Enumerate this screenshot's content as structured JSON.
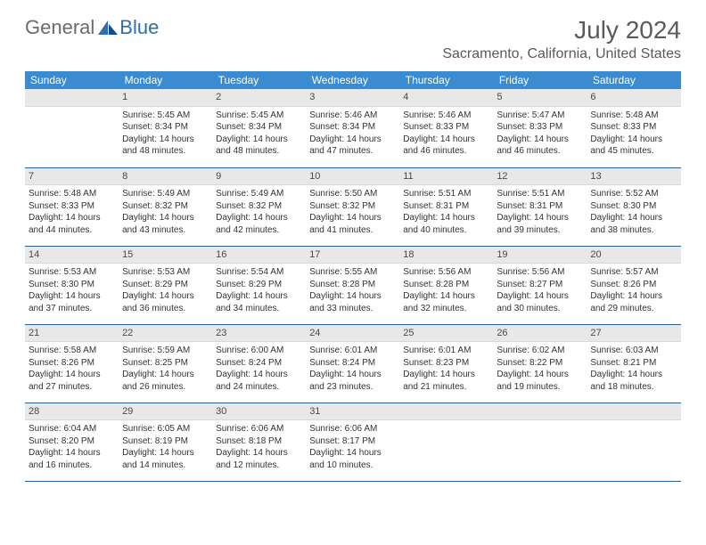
{
  "logo": {
    "part1": "General",
    "part2": "Blue"
  },
  "title": "July 2024",
  "location": "Sacramento, California, United States",
  "colors": {
    "header_bg": "#3a8bd0",
    "header_text": "#ffffff",
    "daynum_bg": "#e8e8e8",
    "row_border": "#2a5f8f",
    "logo_gray": "#6b6b6b",
    "logo_blue": "#2f6fb0",
    "body_text": "#333333"
  },
  "typography": {
    "title_fontsize": 28,
    "location_fontsize": 16,
    "dayheader_fontsize": 12,
    "daynum_fontsize": 11,
    "cell_fontsize": 10
  },
  "weekdays": [
    "Sunday",
    "Monday",
    "Tuesday",
    "Wednesday",
    "Thursday",
    "Friday",
    "Saturday"
  ],
  "weeks": [
    [
      {
        "n": "",
        "lines": []
      },
      {
        "n": "1",
        "lines": [
          "Sunrise: 5:45 AM",
          "Sunset: 8:34 PM",
          "Daylight: 14 hours",
          "and 48 minutes."
        ]
      },
      {
        "n": "2",
        "lines": [
          "Sunrise: 5:45 AM",
          "Sunset: 8:34 PM",
          "Daylight: 14 hours",
          "and 48 minutes."
        ]
      },
      {
        "n": "3",
        "lines": [
          "Sunrise: 5:46 AM",
          "Sunset: 8:34 PM",
          "Daylight: 14 hours",
          "and 47 minutes."
        ]
      },
      {
        "n": "4",
        "lines": [
          "Sunrise: 5:46 AM",
          "Sunset: 8:33 PM",
          "Daylight: 14 hours",
          "and 46 minutes."
        ]
      },
      {
        "n": "5",
        "lines": [
          "Sunrise: 5:47 AM",
          "Sunset: 8:33 PM",
          "Daylight: 14 hours",
          "and 46 minutes."
        ]
      },
      {
        "n": "6",
        "lines": [
          "Sunrise: 5:48 AM",
          "Sunset: 8:33 PM",
          "Daylight: 14 hours",
          "and 45 minutes."
        ]
      }
    ],
    [
      {
        "n": "7",
        "lines": [
          "Sunrise: 5:48 AM",
          "Sunset: 8:33 PM",
          "Daylight: 14 hours",
          "and 44 minutes."
        ]
      },
      {
        "n": "8",
        "lines": [
          "Sunrise: 5:49 AM",
          "Sunset: 8:32 PM",
          "Daylight: 14 hours",
          "and 43 minutes."
        ]
      },
      {
        "n": "9",
        "lines": [
          "Sunrise: 5:49 AM",
          "Sunset: 8:32 PM",
          "Daylight: 14 hours",
          "and 42 minutes."
        ]
      },
      {
        "n": "10",
        "lines": [
          "Sunrise: 5:50 AM",
          "Sunset: 8:32 PM",
          "Daylight: 14 hours",
          "and 41 minutes."
        ]
      },
      {
        "n": "11",
        "lines": [
          "Sunrise: 5:51 AM",
          "Sunset: 8:31 PM",
          "Daylight: 14 hours",
          "and 40 minutes."
        ]
      },
      {
        "n": "12",
        "lines": [
          "Sunrise: 5:51 AM",
          "Sunset: 8:31 PM",
          "Daylight: 14 hours",
          "and 39 minutes."
        ]
      },
      {
        "n": "13",
        "lines": [
          "Sunrise: 5:52 AM",
          "Sunset: 8:30 PM",
          "Daylight: 14 hours",
          "and 38 minutes."
        ]
      }
    ],
    [
      {
        "n": "14",
        "lines": [
          "Sunrise: 5:53 AM",
          "Sunset: 8:30 PM",
          "Daylight: 14 hours",
          "and 37 minutes."
        ]
      },
      {
        "n": "15",
        "lines": [
          "Sunrise: 5:53 AM",
          "Sunset: 8:29 PM",
          "Daylight: 14 hours",
          "and 36 minutes."
        ]
      },
      {
        "n": "16",
        "lines": [
          "Sunrise: 5:54 AM",
          "Sunset: 8:29 PM",
          "Daylight: 14 hours",
          "and 34 minutes."
        ]
      },
      {
        "n": "17",
        "lines": [
          "Sunrise: 5:55 AM",
          "Sunset: 8:28 PM",
          "Daylight: 14 hours",
          "and 33 minutes."
        ]
      },
      {
        "n": "18",
        "lines": [
          "Sunrise: 5:56 AM",
          "Sunset: 8:28 PM",
          "Daylight: 14 hours",
          "and 32 minutes."
        ]
      },
      {
        "n": "19",
        "lines": [
          "Sunrise: 5:56 AM",
          "Sunset: 8:27 PM",
          "Daylight: 14 hours",
          "and 30 minutes."
        ]
      },
      {
        "n": "20",
        "lines": [
          "Sunrise: 5:57 AM",
          "Sunset: 8:26 PM",
          "Daylight: 14 hours",
          "and 29 minutes."
        ]
      }
    ],
    [
      {
        "n": "21",
        "lines": [
          "Sunrise: 5:58 AM",
          "Sunset: 8:26 PM",
          "Daylight: 14 hours",
          "and 27 minutes."
        ]
      },
      {
        "n": "22",
        "lines": [
          "Sunrise: 5:59 AM",
          "Sunset: 8:25 PM",
          "Daylight: 14 hours",
          "and 26 minutes."
        ]
      },
      {
        "n": "23",
        "lines": [
          "Sunrise: 6:00 AM",
          "Sunset: 8:24 PM",
          "Daylight: 14 hours",
          "and 24 minutes."
        ]
      },
      {
        "n": "24",
        "lines": [
          "Sunrise: 6:01 AM",
          "Sunset: 8:24 PM",
          "Daylight: 14 hours",
          "and 23 minutes."
        ]
      },
      {
        "n": "25",
        "lines": [
          "Sunrise: 6:01 AM",
          "Sunset: 8:23 PM",
          "Daylight: 14 hours",
          "and 21 minutes."
        ]
      },
      {
        "n": "26",
        "lines": [
          "Sunrise: 6:02 AM",
          "Sunset: 8:22 PM",
          "Daylight: 14 hours",
          "and 19 minutes."
        ]
      },
      {
        "n": "27",
        "lines": [
          "Sunrise: 6:03 AM",
          "Sunset: 8:21 PM",
          "Daylight: 14 hours",
          "and 18 minutes."
        ]
      }
    ],
    [
      {
        "n": "28",
        "lines": [
          "Sunrise: 6:04 AM",
          "Sunset: 8:20 PM",
          "Daylight: 14 hours",
          "and 16 minutes."
        ]
      },
      {
        "n": "29",
        "lines": [
          "Sunrise: 6:05 AM",
          "Sunset: 8:19 PM",
          "Daylight: 14 hours",
          "and 14 minutes."
        ]
      },
      {
        "n": "30",
        "lines": [
          "Sunrise: 6:06 AM",
          "Sunset: 8:18 PM",
          "Daylight: 14 hours",
          "and 12 minutes."
        ]
      },
      {
        "n": "31",
        "lines": [
          "Sunrise: 6:06 AM",
          "Sunset: 8:17 PM",
          "Daylight: 14 hours",
          "and 10 minutes."
        ]
      },
      {
        "n": "",
        "lines": []
      },
      {
        "n": "",
        "lines": []
      },
      {
        "n": "",
        "lines": []
      }
    ]
  ]
}
